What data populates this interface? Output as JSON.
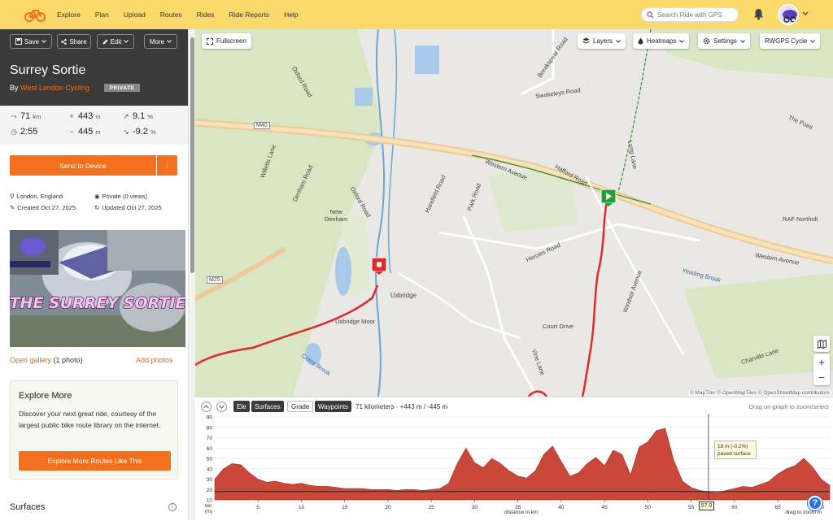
{
  "nav": {
    "items": [
      "Explore",
      "Plan",
      "Upload",
      "Routes",
      "Rides",
      "Ride Reports",
      "Help"
    ]
  },
  "search": {
    "placeholder": "Search Ride with GPS"
  },
  "sidebar": {
    "buttons": {
      "save": "Save",
      "share": "Share",
      "edit": "Edit",
      "more": "More"
    },
    "title": "Surrey Sortie",
    "by_prefix": "By",
    "organizer": "West London Cycling",
    "privacy_badge": "PRIVATE",
    "stats": {
      "distance": "71",
      "distance_unit": "km",
      "elev_gain": "443",
      "elev_gain_unit": "m",
      "max_grade": "9.1",
      "max_grade_unit": "%",
      "duration": "2:55",
      "elev_loss": "445",
      "elev_loss_unit": "m",
      "min_grade": "-9.2",
      "min_grade_unit": "%"
    },
    "send_button": "Send to Device",
    "send_more": "⋮",
    "meta": {
      "location": "London, England",
      "visibility": "Private (0 views)",
      "created": "Created Oct 27, 2025",
      "updated": "Updated Oct 27, 2025"
    },
    "photo_text": "THE SURREY SORTIE",
    "gallery_link": "Open gallery",
    "gallery_count": "(1 photo)",
    "add_photos": "Add photos",
    "explore": {
      "title": "Explore More",
      "text": "Discover your next great ride, courtesy of the largest public bike route library on the internet.",
      "button": "Explore More Routes Like This"
    },
    "surfaces_heading": "Surfaces",
    "surfaces_info": "i"
  },
  "map": {
    "fullscreen": "Fullscreen",
    "layers": "Layers",
    "heatmaps": "Heatmaps",
    "settings": "Settings",
    "basemap": "RWGPS Cycle",
    "zoom_in": "+",
    "zoom_out": "−",
    "attribution": "© MapTiler © OpenMapTiles © OpenStreetMap contributors",
    "labels": {
      "swakeleys": "Swakeleys Road",
      "western_avenue": "Western Avenue",
      "western_avenue_e": "Western Avenue",
      "halford": "Halford Road",
      "long_lane": "Long Lane",
      "the_point": "The Point",
      "m40": "M40",
      "willetts": "Willetts Lane",
      "denham": "Denham Road",
      "oxford": "Oxford Road",
      "oxford2": "Oxford Road",
      "new_denham": "New Denham",
      "harefield": "Harefield Road",
      "park_road": "Park Road",
      "breakspear": "Breakspear Road",
      "uxbridge": "Uxbridge",
      "uxbridge_moor": "Uxbridge Moor",
      "m25": "M25",
      "hercies": "Hercies Road",
      "court_drive": "Court Drive",
      "windsor": "Windsor Avenue",
      "yeading": "Yeading Brook",
      "raf": "RAF Northolt",
      "colne": "Colne Brook",
      "vine": "Vine Lane",
      "charville": "Charville Lane"
    }
  },
  "elevation": {
    "tabs": {
      "ele": "Ele",
      "surfaces": "Surfaces",
      "grade": "Grade",
      "waypoints": "Waypoints"
    },
    "summary": "71 kilometers · +443 m / -445 m",
    "drag_hint": "Drag on graph to zoom/select",
    "tooltip_line1": "18 m (-0.2%)",
    "tooltip_line2": "paved surface",
    "marker_value": "57.0",
    "x_axis_label": "distance in km",
    "y_unit_line1": "ele",
    "y_unit_line2": "(m)",
    "drag_zoom": "drag to zoom in",
    "help": "?",
    "y_ticks": [
      "90",
      "80",
      "70",
      "60",
      "50",
      "40",
      "30",
      "20",
      "10"
    ],
    "x_ticks": [
      "5",
      "10",
      "15",
      "20",
      "25",
      "30",
      "35",
      "40",
      "45",
      "50",
      "55",
      "60",
      "65",
      "70"
    ]
  },
  "chart_data": {
    "type": "area",
    "x_label": "distance in km",
    "y_label": "ele (m)",
    "xlim": [
      0,
      71
    ],
    "ylim": [
      10,
      90
    ],
    "x": [
      0,
      1,
      2,
      3,
      4,
      5,
      6,
      7,
      8,
      9,
      10,
      11,
      12,
      13,
      14,
      15,
      16,
      17,
      18,
      19,
      20,
      21,
      22,
      23,
      24,
      25,
      26,
      27,
      28,
      29,
      30,
      31,
      32,
      33,
      34,
      35,
      36,
      37,
      38,
      39,
      40,
      41,
      42,
      43,
      44,
      45,
      46,
      47,
      48,
      49,
      50,
      51,
      52,
      53,
      54,
      55,
      56,
      57,
      58,
      59,
      60,
      61,
      62,
      63,
      64,
      65,
      66,
      67,
      68,
      69,
      70,
      71
    ],
    "series": [
      {
        "values": [
          30,
          40,
          45,
          44,
          36,
          30,
          27,
          28,
          26,
          25,
          26,
          24,
          23,
          23,
          22,
          21,
          21,
          21,
          20,
          20,
          20,
          19,
          20,
          20,
          19,
          20,
          21,
          26,
          45,
          60,
          46,
          41,
          50,
          45,
          38,
          33,
          31,
          38,
          54,
          62,
          47,
          33,
          36,
          45,
          51,
          43,
          58,
          54,
          34,
          61,
          66,
          77,
          79,
          48,
          28,
          22,
          19,
          18,
          17,
          19,
          21,
          23,
          22,
          25,
          28,
          35,
          40,
          43,
          50,
          42,
          30,
          24
        ]
      }
    ]
  }
}
